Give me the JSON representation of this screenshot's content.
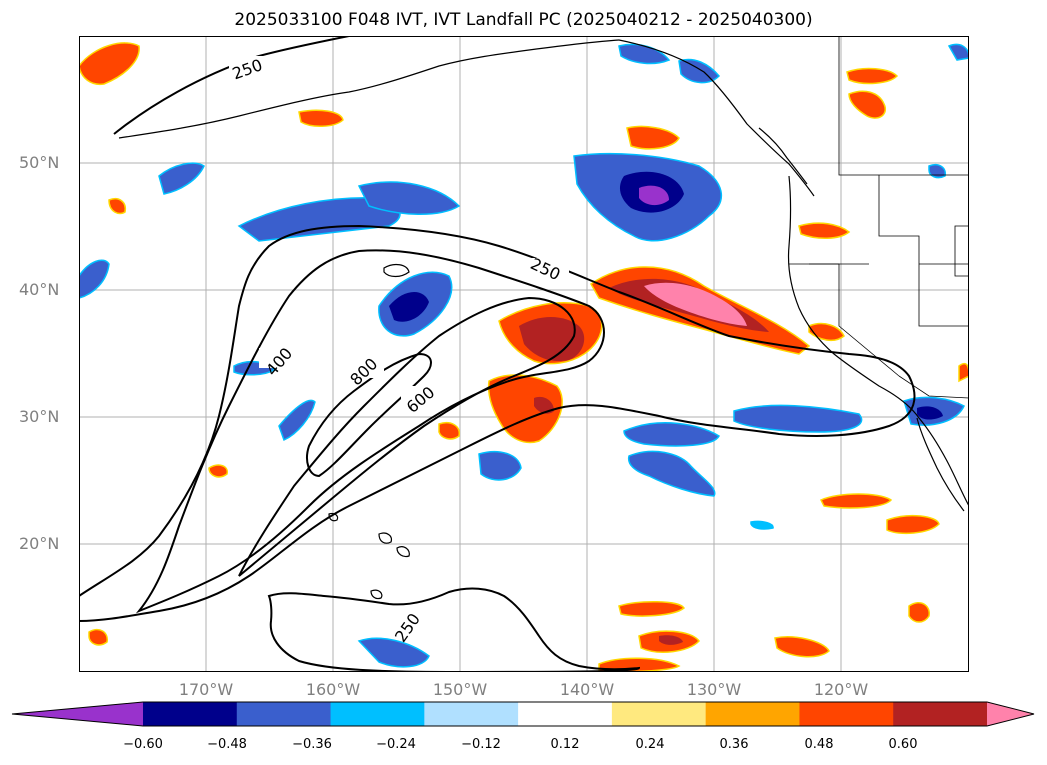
{
  "title": "2025033100 F048 IVT, IVT Landfall PC (2025040212 - 2025040300)",
  "map": {
    "lat_labels": [
      "50°N",
      "40°N",
      "30°N",
      "20°N"
    ],
    "lon_labels": [
      "170°W",
      "160°W",
      "150°W",
      "140°W",
      "130°W",
      "120°W"
    ],
    "contour_labels": [
      "250",
      "250",
      "400",
      "800",
      "600",
      "250"
    ]
  },
  "colorbar": {
    "colors": [
      "#9932cc",
      "#00008b",
      "#3a5fcd",
      "#00bfff",
      "#b0e0ff",
      "#ffffff",
      "#ffe97f",
      "#ffa500",
      "#ff4500",
      "#b22222",
      "#ff82ab"
    ],
    "tick_labels": [
      "−0.60",
      "−0.48",
      "−0.36",
      "−0.24",
      "−0.12",
      "0.12",
      "0.24",
      "0.36",
      "0.48",
      "0.60"
    ]
  },
  "colors": {
    "grid": "#b0b0b0",
    "contour": "#000000",
    "label": "#808080"
  }
}
